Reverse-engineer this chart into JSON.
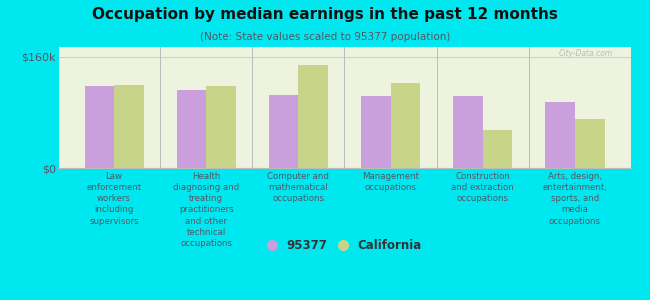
{
  "title": "Occupation by median earnings in the past 12 months",
  "subtitle": "(Note: State values scaled to 95377 population)",
  "categories": [
    "Law\nenforcement\nworkers\nincluding\nsupervisors",
    "Health\ndiagnosing and\ntreating\npractitioners\nand other\ntechnical\noccupations",
    "Computer and\nmathematical\noccupations",
    "Management\noccupations",
    "Construction\nand extraction\noccupations",
    "Arts, design,\nentertainment,\nsports, and\nmedia\noccupations"
  ],
  "values_95377": [
    118000,
    112000,
    105000,
    104000,
    103000,
    95000
  ],
  "values_california": [
    120000,
    118000,
    148000,
    122000,
    55000,
    70000
  ],
  "color_95377": "#c9a0dc",
  "color_california": "#c8d48a",
  "background_outer": "#00e8ef",
  "background_plot": "#eef3df",
  "ylabel_160": "$160k",
  "ylabel_0": "$0",
  "ylim": [
    0,
    175000
  ],
  "legend_label_95377": "95377",
  "legend_label_ca": "California",
  "watermark": "City-Data.com",
  "title_fontsize": 11,
  "subtitle_fontsize": 7.5,
  "tick_label_fontsize": 6.2,
  "legend_fontsize": 8.5
}
